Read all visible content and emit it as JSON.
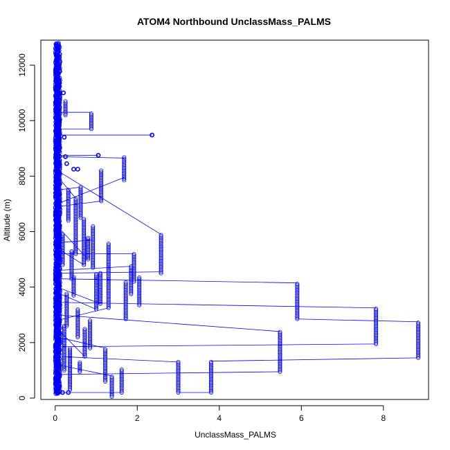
{
  "chart_data": {
    "type": "scatter",
    "title": "ATOM4 Northbound UnclassMass_PALMS",
    "xlabel": "UnclassMass_PALMS",
    "ylabel": "Altitude (m)",
    "xlim": [
      -0.35,
      9.1
    ],
    "ylim": [
      -50,
      12900
    ],
    "xticks": [
      0,
      2,
      4,
      6,
      8
    ],
    "yticks": [
      0,
      2000,
      4000,
      6000,
      8000,
      10000,
      12000
    ],
    "point_color": "#0000ff",
    "series": [
      {
        "name": "profiles",
        "columns": [
          {
            "x": 8.85,
            "y0": 1450,
            "y1": 2750
          },
          {
            "x": 7.82,
            "y0": 1950,
            "y1": 3250
          },
          {
            "x": 5.9,
            "y0": 2850,
            "y1": 4150
          },
          {
            "x": 5.48,
            "y0": 950,
            "y1": 2400
          },
          {
            "x": 3.8,
            "y0": 200,
            "y1": 1330
          },
          {
            "x": 3.0,
            "y0": 200,
            "y1": 1300
          },
          {
            "x": 2.58,
            "y0": 4500,
            "y1": 5900
          },
          {
            "x": 2.05,
            "y0": 3350,
            "y1": 4350
          },
          {
            "x": 1.92,
            "y0": 4200,
            "y1": 5200
          },
          {
            "x": 1.85,
            "y0": 3750,
            "y1": 4750
          },
          {
            "x": 1.68,
            "y0": 7850,
            "y1": 8700
          },
          {
            "x": 1.72,
            "y0": 2850,
            "y1": 4200
          },
          {
            "x": 1.62,
            "y0": 200,
            "y1": 1050
          },
          {
            "x": 1.38,
            "y0": 50,
            "y1": 800
          },
          {
            "x": 1.3,
            "y0": 3250,
            "y1": 5600
          },
          {
            "x": 1.22,
            "y0": 600,
            "y1": 1800
          },
          {
            "x": 1.12,
            "y0": 7100,
            "y1": 8200
          },
          {
            "x": 1.1,
            "y0": 3400,
            "y1": 4550
          },
          {
            "x": 1.0,
            "y0": 3200,
            "y1": 4500
          },
          {
            "x": 0.92,
            "y0": 4700,
            "y1": 6200
          },
          {
            "x": 0.88,
            "y0": 9700,
            "y1": 10300
          },
          {
            "x": 0.85,
            "y0": 1800,
            "y1": 2800
          },
          {
            "x": 0.8,
            "y0": 5000,
            "y1": 5800
          },
          {
            "x": 0.72,
            "y0": 1500,
            "y1": 2500
          },
          {
            "x": 0.7,
            "y0": 4800,
            "y1": 6500
          },
          {
            "x": 0.62,
            "y0": 6500,
            "y1": 7600
          },
          {
            "x": 0.6,
            "y0": 950,
            "y1": 1300
          },
          {
            "x": 0.55,
            "y0": 2200,
            "y1": 3200
          },
          {
            "x": 0.5,
            "y0": 5200,
            "y1": 7200
          },
          {
            "x": 0.45,
            "y0": 3700,
            "y1": 4400
          },
          {
            "x": 0.4,
            "y0": 4300,
            "y1": 5300
          },
          {
            "x": 0.36,
            "y0": 300,
            "y1": 1800
          },
          {
            "x": 0.32,
            "y0": 6400,
            "y1": 7500
          },
          {
            "x": 0.28,
            "y0": 2600,
            "y1": 3800
          },
          {
            "x": 0.25,
            "y0": 10200,
            "y1": 10700
          },
          {
            "x": 0.22,
            "y0": 1000,
            "y1": 2600
          },
          {
            "x": 0.18,
            "y0": 4800,
            "y1": 5900
          }
        ],
        "isolated_points": [
          {
            "x": 2.36,
            "y": 9480
          },
          {
            "x": 1.05,
            "y": 8750
          },
          {
            "x": 0.22,
            "y": 9400
          },
          {
            "x": 0.2,
            "y": 11000
          },
          {
            "x": 0.25,
            "y": 8700
          },
          {
            "x": 0.28,
            "y": 8450
          },
          {
            "x": 0.45,
            "y": 8250
          },
          {
            "x": 0.55,
            "y": 8250
          },
          {
            "x": 0.32,
            "y": 200
          },
          {
            "x": 0.18,
            "y": 200
          }
        ],
        "connecting_segments": [
          [
            [
              0.05,
              9480
            ],
            [
              2.36,
              9480
            ]
          ],
          [
            [
              0.05,
              8750
            ],
            [
              1.05,
              8750
            ]
          ],
          [
            [
              0.05,
              8700
            ],
            [
              1.68,
              8650
            ]
          ],
          [
            [
              0.05,
              8200
            ],
            [
              2.58,
              5900
            ]
          ],
          [
            [
              0.05,
              7500
            ],
            [
              0.62,
              7600
            ]
          ],
          [
            [
              0.05,
              7000
            ],
            [
              1.68,
              7950
            ]
          ],
          [
            [
              0.05,
              5600
            ],
            [
              0.92,
              5700
            ]
          ],
          [
            [
              0.05,
              5200
            ],
            [
              1.92,
              5200
            ]
          ],
          [
            [
              0.05,
              4500
            ],
            [
              2.58,
              4550
            ]
          ],
          [
            [
              0.05,
              4300
            ],
            [
              5.9,
              4150
            ]
          ],
          [
            [
              0.05,
              3450
            ],
            [
              7.82,
              3250
            ]
          ],
          [
            [
              0.05,
              3000
            ],
            [
              5.48,
              2400
            ]
          ],
          [
            [
              5.9,
              2850
            ],
            [
              8.85,
              2750
            ]
          ],
          [
            [
              0.05,
              1850
            ],
            [
              7.82,
              1950
            ]
          ],
          [
            [
              3.8,
              1330
            ],
            [
              8.85,
              1450
            ]
          ],
          [
            [
              0.05,
              1500
            ],
            [
              3.0,
              1300
            ]
          ],
          [
            [
              0.05,
              850
            ],
            [
              5.48,
              950
            ]
          ],
          [
            [
              3.0,
              200
            ],
            [
              3.8,
              200
            ]
          ],
          [
            [
              0.05,
              200
            ],
            [
              1.62,
              200
            ]
          ],
          [
            [
              0.05,
              10300
            ],
            [
              0.88,
              10300
            ]
          ],
          [
            [
              0.05,
              9700
            ],
            [
              0.88,
              9700
            ]
          ],
          [
            [
              0.05,
              6900
            ],
            [
              1.12,
              7100
            ]
          ],
          [
            [
              0.05,
              2800
            ],
            [
              1.3,
              3250
            ]
          ],
          [
            [
              0.05,
              4600
            ],
            [
              1.85,
              4750
            ]
          ],
          [
            [
              0.05,
              1200
            ],
            [
              1.38,
              800
            ]
          ],
          [
            [
              0.05,
              3800
            ],
            [
              1.0,
              3200
            ]
          ],
          [
            [
              0.05,
              6200
            ],
            [
              0.8,
              5000
            ]
          ],
          [
            [
              0.05,
              2200
            ],
            [
              1.22,
              1800
            ]
          ],
          [
            [
              0.05,
              5400
            ],
            [
              0.7,
              4800
            ]
          ],
          [
            [
              0.05,
              8000
            ],
            [
              0.5,
              7200
            ]
          ],
          [
            [
              0.05,
              4000
            ],
            [
              1.1,
              3400
            ]
          ],
          [
            [
              0.05,
              2500
            ],
            [
              0.72,
              1500
            ]
          ]
        ],
        "dense_column": {
          "x_min": 0.0,
          "x_max": 0.12,
          "y0": 150,
          "y1": 12800
        }
      }
    ]
  }
}
